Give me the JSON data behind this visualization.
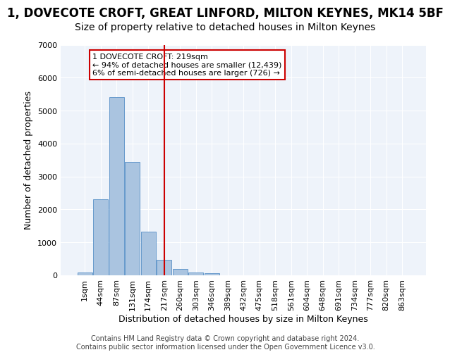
{
  "title": "1, DOVECOTE CROFT, GREAT LINFORD, MILTON KEYNES, MK14 5BF",
  "subtitle": "Size of property relative to detached houses in Milton Keynes",
  "xlabel": "Distribution of detached houses by size in Milton Keynes",
  "ylabel": "Number of detached properties",
  "bar_values": [
    75,
    2300,
    5400,
    3450,
    1320,
    475,
    200,
    90,
    60,
    0,
    0,
    0,
    0,
    0,
    0,
    0,
    0,
    0,
    0,
    0,
    0
  ],
  "categories": [
    "1sqm",
    "44sqm",
    "87sqm",
    "131sqm",
    "174sqm",
    "217sqm",
    "260sqm",
    "303sqm",
    "346sqm",
    "389sqm",
    "432sqm",
    "475sqm",
    "518sqm",
    "561sqm",
    "604sqm",
    "648sqm",
    "691sqm",
    "734sqm",
    "777sqm",
    "820sqm",
    "863sqm"
  ],
  "bar_color": "#aac4e0",
  "bar_edgecolor": "#6699cc",
  "vline_x": 5.0,
  "vline_color": "#cc0000",
  "annotation_text": "1 DOVECOTE CROFT: 219sqm\n← 94% of detached houses are smaller (12,439)\n6% of semi-detached houses are larger (726) →",
  "annotation_box_color": "#cc0000",
  "ylim": [
    0,
    7000
  ],
  "yticks": [
    0,
    1000,
    2000,
    3000,
    4000,
    5000,
    6000,
    7000
  ],
  "footer": "Contains HM Land Registry data © Crown copyright and database right 2024.\nContains public sector information licensed under the Open Government Licence v3.0.",
  "title_fontsize": 12,
  "subtitle_fontsize": 10,
  "xlabel_fontsize": 9,
  "ylabel_fontsize": 9,
  "tick_fontsize": 8,
  "footer_fontsize": 7
}
